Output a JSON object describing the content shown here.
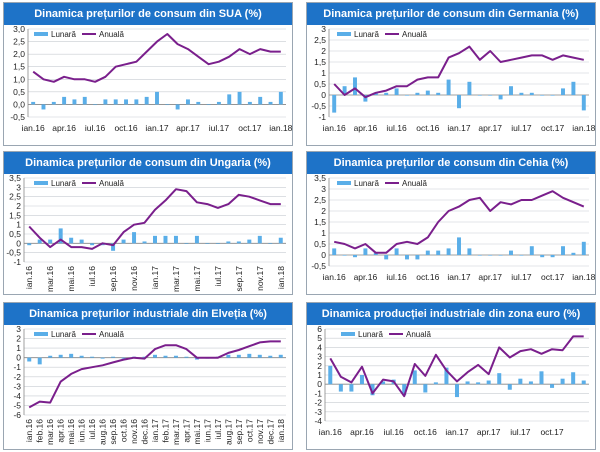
{
  "colors": {
    "header": "#1e73c8",
    "monthly": "#5aaee8",
    "annual": "#7a1f8c",
    "grid": "#c8ccd2"
  },
  "legend": {
    "monthly": "Lunară",
    "annual": "Anuală"
  },
  "chart_data": [
    {
      "type": "bar+line",
      "title": "Dinamica prețurilor de consum din SUA (%)",
      "ylim": [
        -0.5,
        3.0
      ],
      "yticks": [
        -0.5,
        0.0,
        0.5,
        1.0,
        1.5,
        2.0,
        2.5,
        3.0
      ],
      "ytick_labels": [
        "-0,5",
        "0,0",
        "0,5",
        "1,0",
        "1,5",
        "2,0",
        "2,5",
        "3,0"
      ],
      "xtick_labels": [
        "ian.16",
        "apr.16",
        "iul.16",
        "oct.16",
        "ian.17",
        "apr.17",
        "iul.17",
        "oct.17",
        "ian.18"
      ],
      "xtick_index": [
        0,
        3,
        6,
        9,
        12,
        15,
        18,
        21,
        24
      ],
      "series": [
        {
          "name": "Lunară",
          "values": [
            0.1,
            -0.2,
            0.1,
            0.3,
            0.2,
            0.3,
            0.0,
            0.2,
            0.2,
            0.2,
            0.2,
            0.3,
            0.5,
            0.0,
            -0.2,
            0.2,
            0.1,
            0.0,
            0.1,
            0.4,
            0.5,
            0.1,
            0.3,
            0.1,
            0.5
          ]
        },
        {
          "name": "Anuală",
          "values": [
            1.3,
            1.0,
            0.9,
            1.1,
            1.0,
            1.0,
            0.9,
            1.1,
            1.5,
            1.6,
            1.7,
            2.1,
            2.5,
            2.8,
            2.4,
            2.2,
            1.9,
            1.6,
            1.7,
            1.9,
            2.2,
            2.0,
            2.2,
            2.1,
            2.1
          ]
        }
      ]
    },
    {
      "type": "bar+line",
      "title": "Dinamica prețurilor de consum din Germania (%)",
      "ylim": [
        -1.0,
        3.0
      ],
      "yticks": [
        -1.0,
        -0.5,
        0.0,
        0.5,
        1.0,
        1.5,
        2.0,
        2.5,
        3.0
      ],
      "ytick_labels": [
        "-1",
        "-0,5",
        "0",
        "0,5",
        "1",
        "1,5",
        "2",
        "2,5",
        "3"
      ],
      "xtick_labels": [
        "ian.16",
        "apr.16",
        "iul.16",
        "oct.16",
        "ian.17",
        "apr.17",
        "iul.17",
        "oct.17",
        "ian.18"
      ],
      "xtick_index": [
        0,
        3,
        6,
        9,
        12,
        15,
        18,
        21,
        24
      ],
      "series": [
        {
          "name": "Lunară",
          "values": [
            -0.8,
            0.4,
            0.8,
            -0.3,
            0.1,
            0.1,
            0.3,
            0.0,
            0.1,
            0.2,
            0.1,
            0.7,
            -0.6,
            0.6,
            0.0,
            0.0,
            -0.2,
            0.4,
            0.1,
            0.1,
            0.0,
            0.0,
            0.3,
            0.6,
            -0.7
          ]
        },
        {
          "name": "Anuală",
          "values": [
            0.5,
            0.0,
            0.3,
            -0.1,
            0.1,
            0.2,
            0.4,
            0.4,
            0.7,
            0.8,
            0.8,
            1.7,
            1.9,
            2.2,
            1.6,
            2.0,
            1.5,
            1.6,
            1.7,
            1.8,
            1.8,
            1.6,
            1.8,
            1.7,
            1.6
          ]
        }
      ]
    },
    {
      "type": "bar+line",
      "title": "Dinamica prețurilor de consum din Ungaria (%)",
      "ylim": [
        -1.0,
        3.5
      ],
      "yticks": [
        -1.0,
        -0.5,
        0.0,
        0.5,
        1.0,
        1.5,
        2.0,
        2.5,
        3.0,
        3.5
      ],
      "ytick_labels": [
        "-1",
        "-0,5",
        "0",
        "0,5",
        "1",
        "1,5",
        "2",
        "2,5",
        "3",
        "3,5"
      ],
      "xtick_labels": [
        "ian.16",
        "mar.16",
        "mai.16",
        "iul.16",
        "sep.16",
        "nov.16",
        "ian.17",
        "mar.17",
        "mai.17",
        "iul.17",
        "sep.17",
        "nov.17",
        "ian.18"
      ],
      "xtick_index": [
        0,
        2,
        4,
        6,
        8,
        10,
        12,
        14,
        16,
        18,
        20,
        22,
        24
      ],
      "series": [
        {
          "name": "Lunară",
          "values": [
            -0.1,
            0.2,
            0.2,
            0.8,
            0.3,
            0.2,
            -0.1,
            -0.1,
            -0.4,
            0.2,
            0.6,
            0.1,
            0.4,
            0.4,
            0.4,
            0.0,
            0.4,
            0.0,
            0.0,
            0.1,
            0.1,
            0.2,
            0.4,
            0.0,
            0.3
          ]
        },
        {
          "name": "Anuală",
          "values": [
            0.9,
            0.3,
            -0.2,
            0.2,
            -0.2,
            -0.2,
            -0.3,
            0.0,
            -0.1,
            0.6,
            1.0,
            1.1,
            1.8,
            2.3,
            2.9,
            2.8,
            2.2,
            2.1,
            1.9,
            2.1,
            2.6,
            2.5,
            2.3,
            2.1,
            2.1
          ]
        }
      ]
    },
    {
      "type": "bar+line",
      "title": "Dinamica prețurilor de consum din Cehia (%)",
      "ylim": [
        -0.5,
        3.5
      ],
      "yticks": [
        -0.5,
        0.0,
        0.5,
        1.0,
        1.5,
        2.0,
        2.5,
        3.0,
        3.5
      ],
      "ytick_labels": [
        "-0,5",
        "0",
        "0,5",
        "1",
        "1,5",
        "2",
        "2,5",
        "3",
        "3,5"
      ],
      "xtick_labels": [
        "ian.16",
        "apr.16",
        "iul.16",
        "oct.16",
        "ian.17",
        "apr.17",
        "iul.17",
        "oct.17",
        "ian.18"
      ],
      "xtick_index": [
        0,
        3,
        6,
        9,
        12,
        15,
        18,
        21,
        24
      ],
      "series": [
        {
          "name": "Lunară",
          "values": [
            0.3,
            0.0,
            -0.1,
            0.3,
            0.1,
            -0.2,
            0.3,
            -0.2,
            -0.2,
            0.2,
            0.2,
            0.3,
            0.8,
            0.3,
            0.0,
            0.0,
            0.0,
            0.2,
            0.0,
            0.4,
            -0.1,
            -0.1,
            0.4,
            0.1,
            0.6
          ]
        },
        {
          "name": "Anuală",
          "values": [
            0.6,
            0.5,
            0.3,
            0.5,
            0.1,
            0.1,
            0.5,
            0.6,
            0.5,
            0.8,
            1.5,
            2.0,
            2.2,
            2.5,
            2.6,
            2.0,
            2.4,
            2.3,
            2.5,
            2.5,
            2.7,
            2.9,
            2.6,
            2.4,
            2.2
          ]
        }
      ]
    },
    {
      "type": "bar+line",
      "title": "Dinamica prețurilor industriale din Elveția (%)",
      "ylim": [
        -6,
        3
      ],
      "yticks": [
        -6,
        -5,
        -4,
        -3,
        -2,
        -1,
        0,
        1,
        2,
        3
      ],
      "ytick_labels": [
        "-6",
        "-5",
        "-4",
        "-3",
        "-2",
        "-1",
        "0",
        "1",
        "2",
        "3"
      ],
      "xtick_labels": [
        "ian.16",
        "feb.16",
        "mar.16",
        "apr.16",
        "mai.16",
        "iun.16",
        "iul.16",
        "aug.16",
        "sep.16",
        "oct.16",
        "nov.16",
        "dec.16",
        "ian.17",
        "feb.17",
        "mar.17",
        "apr.17",
        "mai.17",
        "iun.17",
        "iul.17",
        "aug.17",
        "sep.17",
        "oct.17",
        "nov.17",
        "dec.17",
        "ian.18"
      ],
      "xtick_index": [
        0,
        1,
        2,
        3,
        4,
        5,
        6,
        7,
        8,
        9,
        10,
        11,
        12,
        13,
        14,
        15,
        16,
        17,
        18,
        19,
        20,
        21,
        22,
        23,
        24
      ],
      "series": [
        {
          "name": "Lunară",
          "values": [
            -0.4,
            -0.7,
            0.2,
            0.3,
            0.4,
            0.2,
            0.1,
            -0.1,
            0.1,
            -0.1,
            0.1,
            0.1,
            0.3,
            0.2,
            0.2,
            0.1,
            -0.2,
            -0.1,
            0.1,
            0.3,
            0.3,
            0.4,
            0.3,
            0.2,
            0.3
          ]
        },
        {
          "name": "Anuală",
          "values": [
            -5.2,
            -4.6,
            -4.7,
            -2.5,
            -1.7,
            -1.2,
            -1.0,
            -0.8,
            -0.5,
            -0.2,
            0.0,
            -0.1,
            0.9,
            1.3,
            1.3,
            0.9,
            0.0,
            0.0,
            0.0,
            0.5,
            0.8,
            1.2,
            1.6,
            1.7,
            1.7
          ]
        }
      ]
    },
    {
      "type": "bar+line",
      "title": "Dinamica producției industriale din zona euro (%)",
      "ylim": [
        -4,
        6
      ],
      "yticks": [
        -4,
        -3,
        -2,
        -1,
        0,
        1,
        2,
        3,
        4,
        5,
        6
      ],
      "ytick_labels": [
        "-4",
        "-3",
        "-2",
        "-1",
        "0",
        "1",
        "2",
        "3",
        "4",
        "5",
        "6"
      ],
      "xtick_labels": [
        "ian.16",
        "apr.16",
        "iul.16",
        "oct.16",
        "ian.17",
        "apr.17",
        "iul.17",
        "oct.17"
      ],
      "xtick_index": [
        0,
        3,
        6,
        9,
        12,
        15,
        18,
        21
      ],
      "series": [
        {
          "name": "Lunară",
          "values": [
            2.0,
            -0.8,
            -0.8,
            1.0,
            -1.2,
            0.3,
            0.5,
            -1.2,
            1.5,
            -0.9,
            0.2,
            1.8,
            -1.4,
            0.3,
            0.2,
            0.4,
            1.2,
            -0.6,
            0.6,
            0.3,
            1.4,
            -0.4,
            0.6,
            1.3,
            0.4
          ]
        },
        {
          "name": "Anuală",
          "values": [
            2.8,
            0.8,
            0.2,
            1.9,
            -1.0,
            0.5,
            0.3,
            -1.3,
            2.2,
            0.9,
            3.2,
            1.5,
            0.3,
            1.3,
            2.1,
            1.1,
            4.0,
            2.9,
            3.6,
            3.8,
            3.3,
            3.8,
            3.7,
            5.2,
            5.2
          ]
        }
      ]
    }
  ]
}
